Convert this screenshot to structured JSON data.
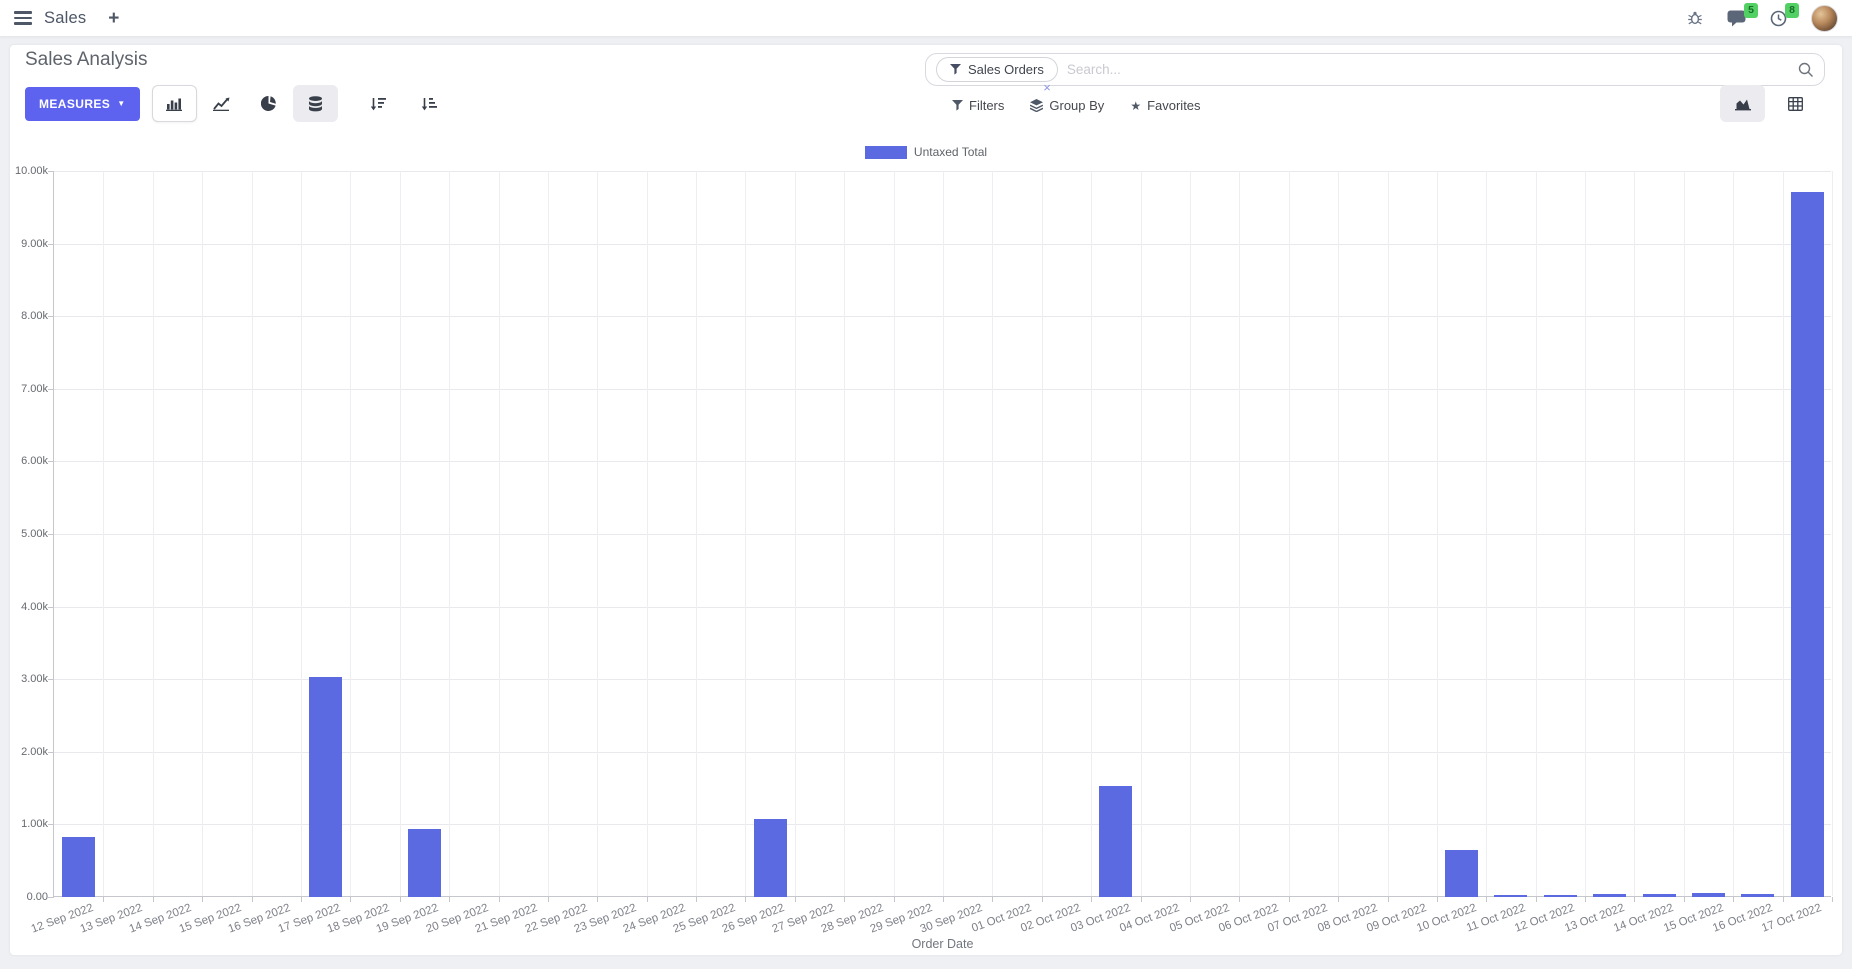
{
  "navbar": {
    "app_name": "Sales",
    "message_badge": "5",
    "activity_badge": "8"
  },
  "icons": {
    "plus": "+",
    "caret_down": "▼",
    "star": "★",
    "close": "×"
  },
  "control_panel": {
    "title": "Sales Analysis",
    "measures_button": "MEASURES",
    "filters_label": "Filters",
    "group_by_label": "Group By",
    "favorites_label": "Favorites"
  },
  "search": {
    "facet_label": "Sales Orders",
    "placeholder": "Search...",
    "remove_facet": "×"
  },
  "chart_data": {
    "type": "bar",
    "title": "",
    "legend_position": "top",
    "xlabel": "Order Date",
    "ylabel": "",
    "ylim": [
      0,
      10000
    ],
    "y_ticks": [
      "0.00",
      "1.00k",
      "2.00k",
      "3.00k",
      "4.00k",
      "5.00k",
      "6.00k",
      "7.00k",
      "8.00k",
      "9.00k",
      "10.00k"
    ],
    "grid": true,
    "bar_color": "#5c6ae2",
    "categories": [
      "12 Sep 2022",
      "13 Sep 2022",
      "14 Sep 2022",
      "15 Sep 2022",
      "16 Sep 2022",
      "17 Sep 2022",
      "18 Sep 2022",
      "19 Sep 2022",
      "20 Sep 2022",
      "21 Sep 2022",
      "22 Sep 2022",
      "23 Sep 2022",
      "24 Sep 2022",
      "25 Sep 2022",
      "26 Sep 2022",
      "27 Sep 2022",
      "28 Sep 2022",
      "29 Sep 2022",
      "30 Sep 2022",
      "01 Oct 2022",
      "02 Oct 2022",
      "03 Oct 2022",
      "04 Oct 2022",
      "05 Oct 2022",
      "06 Oct 2022",
      "07 Oct 2022",
      "08 Oct 2022",
      "09 Oct 2022",
      "10 Oct 2022",
      "11 Oct 2022",
      "12 Oct 2022",
      "13 Oct 2022",
      "14 Oct 2022",
      "15 Oct 2022",
      "16 Oct 2022",
      "17 Oct 2022"
    ],
    "series": [
      {
        "name": "Untaxed Total",
        "values": [
          830,
          0,
          0,
          0,
          0,
          3030,
          0,
          940,
          0,
          0,
          0,
          0,
          0,
          0,
          1070,
          0,
          0,
          0,
          0,
          0,
          0,
          1530,
          0,
          0,
          0,
          0,
          0,
          0,
          650,
          30,
          25,
          45,
          35,
          55,
          45,
          9710
        ]
      }
    ]
  }
}
